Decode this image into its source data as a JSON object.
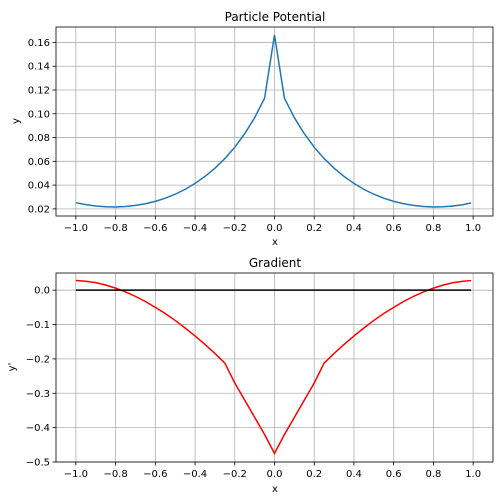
{
  "chart_data": [
    {
      "type": "line",
      "title": "Particle Potential",
      "xlabel": "x",
      "ylabel": "y",
      "xlim": [
        -1.1,
        1.1
      ],
      "ylim": [
        0.014,
        0.173
      ],
      "xticks": [
        -1.0,
        -0.8,
        -0.6,
        -0.4,
        -0.2,
        0.0,
        0.2,
        0.4,
        0.6,
        0.8,
        1.0
      ],
      "xtick_labels": [
        "−1.0",
        "−0.8",
        "−0.6",
        "−0.4",
        "−0.2",
        "0.0",
        "0.2",
        "0.4",
        "0.6",
        "0.8",
        "1.0"
      ],
      "yticks": [
        0.02,
        0.04,
        0.06,
        0.08,
        0.1,
        0.12,
        0.14,
        0.16
      ],
      "ytick_labels": [
        "0.02",
        "0.04",
        "0.06",
        "0.08",
        "0.10",
        "0.12",
        "0.14",
        "0.16"
      ],
      "grid": true,
      "series": [
        {
          "color": "#1f77b4",
          "x": [
            -1.0,
            -0.95,
            -0.9,
            -0.85,
            -0.8,
            -0.75,
            -0.7,
            -0.65,
            -0.6,
            -0.55,
            -0.5,
            -0.45,
            -0.4,
            -0.35,
            -0.3,
            -0.25,
            -0.2,
            -0.15,
            -0.1,
            -0.05,
            0.0,
            0.05,
            0.1,
            0.15,
            0.2,
            0.25,
            0.3,
            0.35,
            0.4,
            0.45,
            0.5,
            0.55,
            0.6,
            0.65,
            0.7,
            0.75,
            0.8,
            0.85,
            0.9,
            0.95,
            0.99
          ],
          "y": [
            0.0252,
            0.0236,
            0.0224,
            0.0218,
            0.0216,
            0.022,
            0.0229,
            0.0243,
            0.0263,
            0.029,
            0.0323,
            0.0364,
            0.0414,
            0.0473,
            0.0542,
            0.0623,
            0.0719,
            0.0832,
            0.0967,
            0.1131,
            0.1663,
            0.1131,
            0.0967,
            0.0832,
            0.0719,
            0.0623,
            0.0542,
            0.0473,
            0.0414,
            0.0364,
            0.0323,
            0.029,
            0.0263,
            0.0243,
            0.0229,
            0.022,
            0.0216,
            0.0218,
            0.0224,
            0.0236,
            0.025
          ]
        }
      ]
    },
    {
      "type": "line",
      "title": "Gradient",
      "xlabel": "x",
      "ylabel": "y'",
      "xlim": [
        -1.1,
        1.1
      ],
      "ylim": [
        -0.5,
        0.05
      ],
      "xticks": [
        -1.0,
        -0.8,
        -0.6,
        -0.4,
        -0.2,
        0.0,
        0.2,
        0.4,
        0.6,
        0.8,
        1.0
      ],
      "xtick_labels": [
        "−1.0",
        "−0.8",
        "−0.6",
        "−0.4",
        "−0.2",
        "0.0",
        "0.2",
        "0.4",
        "0.6",
        "0.8",
        "1.0"
      ],
      "yticks": [
        0.0,
        -0.1,
        -0.2,
        -0.3,
        -0.4,
        -0.5
      ],
      "ytick_labels": [
        "0.0",
        "−0.1",
        "−0.2",
        "−0.3",
        "−0.4",
        "−0.5"
      ],
      "grid": true,
      "series": [
        {
          "color": "#ff0000",
          "x": [
            -1.0,
            -0.95,
            -0.9,
            -0.85,
            -0.8,
            -0.75,
            -0.7,
            -0.65,
            -0.6,
            -0.55,
            -0.5,
            -0.45,
            -0.4,
            -0.35,
            -0.3,
            -0.25,
            -0.2,
            -0.15,
            -0.1,
            -0.05,
            0.0,
            0.05,
            0.1,
            0.15,
            0.2,
            0.25,
            0.3,
            0.35,
            0.4,
            0.45,
            0.5,
            0.55,
            0.6,
            0.65,
            0.7,
            0.75,
            0.8,
            0.85,
            0.9,
            0.95,
            0.99
          ],
          "y": [
            0.028,
            0.026,
            0.022,
            0.015,
            0.006,
            -0.005,
            -0.018,
            -0.033,
            -0.05,
            -0.068,
            -0.088,
            -0.11,
            -0.133,
            -0.158,
            -0.184,
            -0.212,
            -0.27,
            -0.32,
            -0.37,
            -0.42,
            -0.475,
            -0.42,
            -0.37,
            -0.32,
            -0.27,
            -0.212,
            -0.184,
            -0.158,
            -0.133,
            -0.11,
            -0.088,
            -0.068,
            -0.05,
            -0.033,
            -0.018,
            -0.005,
            0.006,
            0.015,
            0.022,
            0.026,
            0.028
          ]
        },
        {
          "color": "#000000",
          "x": [
            -1.0,
            0.99
          ],
          "y": [
            0.0,
            0.0
          ]
        }
      ]
    }
  ]
}
